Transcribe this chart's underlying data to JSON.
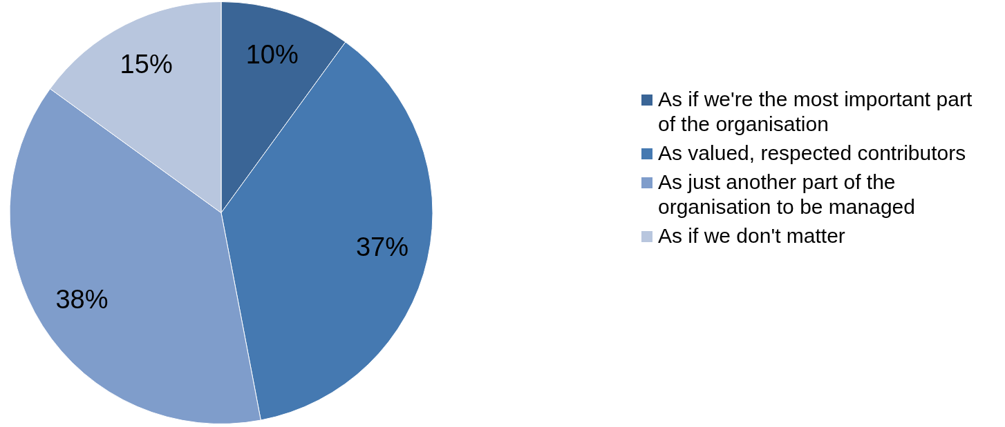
{
  "chart_data": {
    "type": "pie",
    "categories": [
      "As if we're the most important part of the organisation",
      "As valued, respected contributors",
      "As just another part of the organisation to be managed",
      "As if we don't matter"
    ],
    "values": [
      10,
      37,
      38,
      15
    ],
    "colors": [
      "#3a6596",
      "#4579b1",
      "#7f9dcb",
      "#b8c6de"
    ],
    "value_labels": [
      "10%",
      "37%",
      "38%",
      "15%"
    ],
    "legend": "right"
  }
}
